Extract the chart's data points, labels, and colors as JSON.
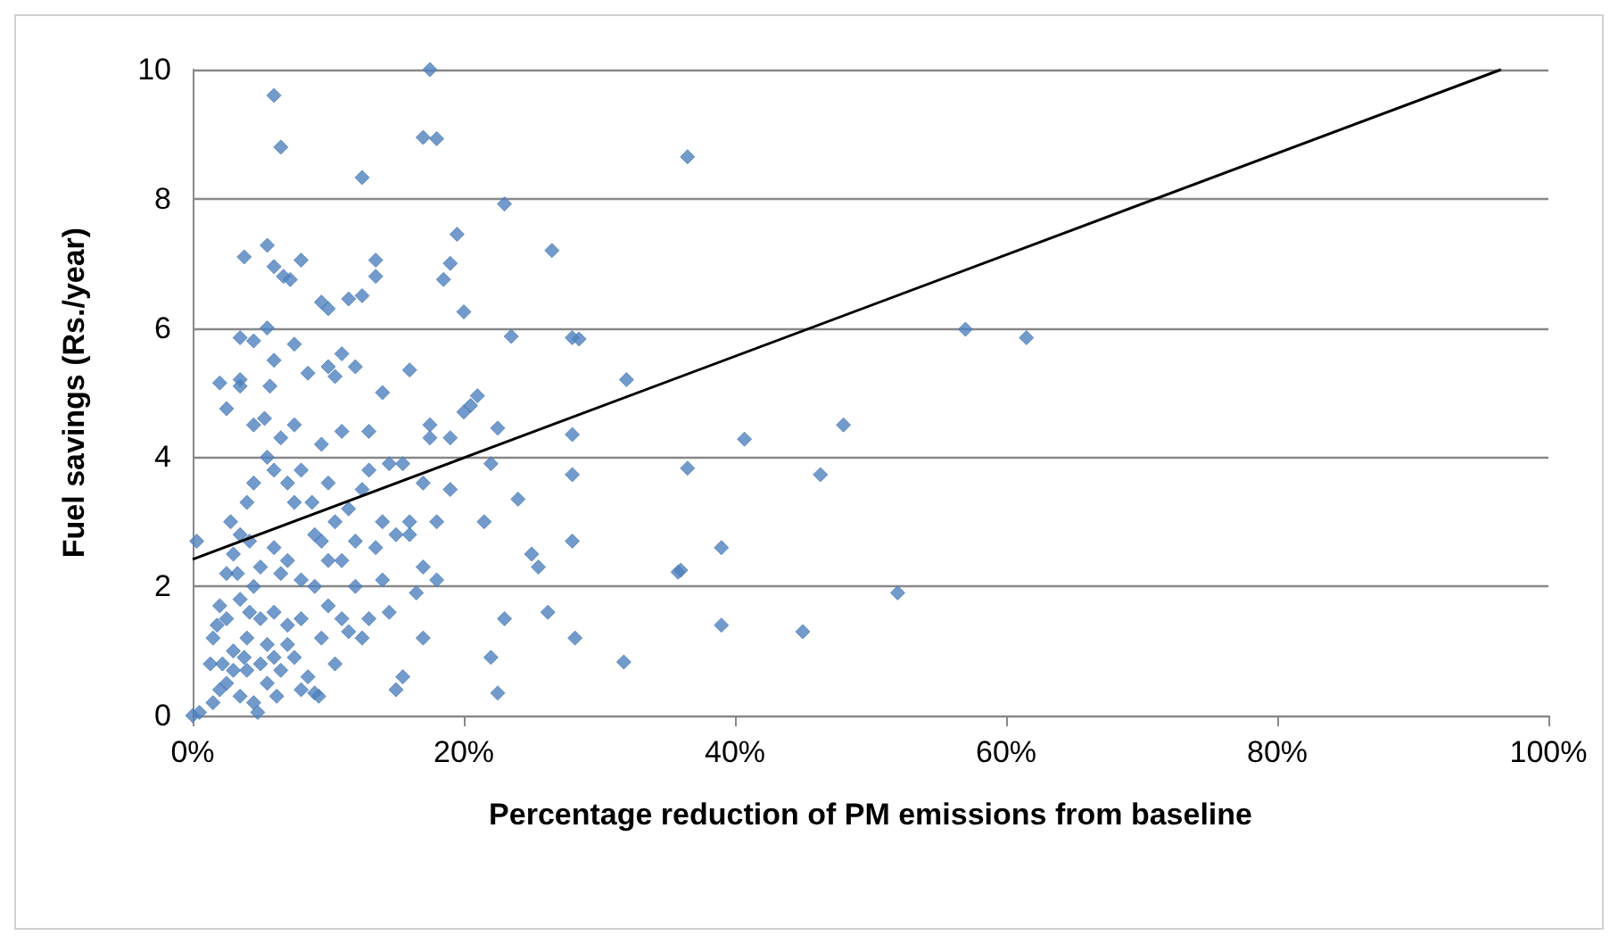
{
  "chart_data": {
    "type": "scatter",
    "xlabel": "Percentage reduction of PM emissions from baseline",
    "ylabel": "Fuel savings (Rs./year)",
    "xlim": [
      0,
      100
    ],
    "xticks": [
      {
        "value": 0,
        "label": "0%"
      },
      {
        "value": 20,
        "label": "20%"
      },
      {
        "value": 40,
        "label": "40%"
      },
      {
        "value": 60,
        "label": "60%"
      },
      {
        "value": 80,
        "label": "80%"
      },
      {
        "value": 100,
        "label": "100%"
      }
    ],
    "ylim": [
      0,
      10
    ],
    "yticks": [
      0,
      2,
      4,
      6,
      8,
      10
    ],
    "grid": "y",
    "series": [
      {
        "marker": "diamond",
        "color": "#4f81bd",
        "x": [
          17.5,
          6,
          17,
          18,
          6.5,
          12.5,
          36.5,
          23,
          26.5,
          5.5,
          3.8,
          8,
          19.5,
          13.5,
          19,
          13.5,
          18.5,
          6,
          6.7,
          7.2,
          11.5,
          12.5,
          9.5,
          10,
          20,
          23.5,
          28,
          28.5,
          57,
          61.5,
          3.5,
          4.5,
          5.5,
          6,
          7.5,
          2,
          3.5,
          3.5,
          2.5,
          8.5,
          10,
          10.5,
          11,
          12,
          14,
          16,
          21,
          20.5,
          20,
          17.5,
          17.5,
          19,
          22.5,
          28,
          32,
          48,
          40.7,
          46.3,
          36.5,
          28,
          22,
          24,
          19,
          21.5,
          25,
          25.5,
          28,
          36,
          35.8,
          39,
          52,
          45,
          39,
          31.8,
          28.2,
          26.2,
          23,
          22,
          22.5,
          15.5,
          15,
          17,
          18,
          16,
          14,
          13,
          11.5,
          10,
          9.5,
          9,
          8.5,
          0.3,
          0,
          0.5,
          1.3,
          2,
          1.8,
          2.5,
          3,
          3.5,
          4,
          4.5,
          4.5,
          5.3,
          5.5,
          6,
          7,
          8,
          7.5,
          8.8,
          9.5,
          10.5,
          11,
          12,
          12.5,
          13,
          14.5,
          15.5,
          14,
          15,
          16,
          17,
          18,
          17,
          12,
          10,
          9,
          8,
          7,
          6,
          5,
          4,
          3,
          2.5,
          3.5,
          4.5,
          4.8,
          5.5,
          6.5,
          7.5,
          7,
          6,
          5,
          4,
          3,
          2.5,
          3.5,
          4.5,
          5,
          6,
          7,
          8,
          6.5,
          5.5,
          4.2,
          3.8,
          2,
          1.5,
          6.2,
          8,
          9.3,
          10.5,
          11,
          12.5,
          13.5,
          11.5,
          13,
          11,
          9.5,
          6.5,
          7.5,
          5.7,
          4.2,
          2.8,
          3.3,
          1.5,
          2.2,
          9,
          10,
          14.5,
          16.5
        ],
        "values": [
          10,
          9.6,
          8.95,
          8.93,
          8.8,
          8.33,
          8.65,
          7.92,
          7.2,
          7.28,
          7.1,
          7.05,
          7.45,
          7.05,
          7,
          6.8,
          6.75,
          6.95,
          6.8,
          6.75,
          6.45,
          6.5,
          6.4,
          6.3,
          6.25,
          5.87,
          5.85,
          5.83,
          5.98,
          5.85,
          5.85,
          5.8,
          6,
          5.5,
          5.75,
          5.15,
          5.2,
          5.1,
          4.75,
          5.3,
          5.4,
          5.25,
          5.6,
          5.4,
          5,
          5.35,
          4.95,
          4.8,
          4.7,
          4.5,
          4.3,
          4.3,
          4.45,
          4.35,
          5.2,
          4.5,
          4.28,
          3.73,
          3.83,
          3.73,
          3.9,
          3.35,
          3.5,
          3,
          2.5,
          2.3,
          2.7,
          2.25,
          2.22,
          2.6,
          1.9,
          1.3,
          1.4,
          0.83,
          1.2,
          1.6,
          1.5,
          0.9,
          0.35,
          0.6,
          0.4,
          1.2,
          2.1,
          2.8,
          2.1,
          1.5,
          1.3,
          1.7,
          1.2,
          0.35,
          0.6,
          2.7,
          0,
          0.05,
          0.8,
          1.7,
          1.4,
          2.2,
          2.5,
          2.8,
          3.3,
          3.6,
          4.5,
          4.6,
          4,
          3.8,
          3.6,
          3.8,
          3.3,
          3.3,
          2.7,
          3,
          2.4,
          2.7,
          3.5,
          3.8,
          3.9,
          3.9,
          3,
          2.8,
          3,
          3.6,
          3,
          2.3,
          2,
          2.4,
          2,
          1.5,
          1.4,
          1.6,
          1.5,
          1.2,
          1,
          0.5,
          0.3,
          0.2,
          0.05,
          0.5,
          0.7,
          0.9,
          1.1,
          0.9,
          0.8,
          0.7,
          0.7,
          1.5,
          1.8,
          2,
          2.3,
          2.6,
          2.4,
          2.1,
          2.2,
          1.1,
          1.6,
          0.9,
          0.4,
          0.2,
          0.3,
          0.4,
          0.3,
          0.8,
          1.5,
          1.2,
          2.6,
          3.2,
          4.4,
          4.4,
          4.2,
          4.3,
          4.5,
          5.1,
          2.7,
          3,
          2.2,
          1.2,
          0.8,
          2.8,
          3.6,
          1.6,
          1.9
        ]
      },
      {
        "type": "line",
        "marker": "none",
        "color": "#000000",
        "x": [
          0,
          96.5
        ],
        "values": [
          2.42,
          10
        ]
      }
    ]
  }
}
